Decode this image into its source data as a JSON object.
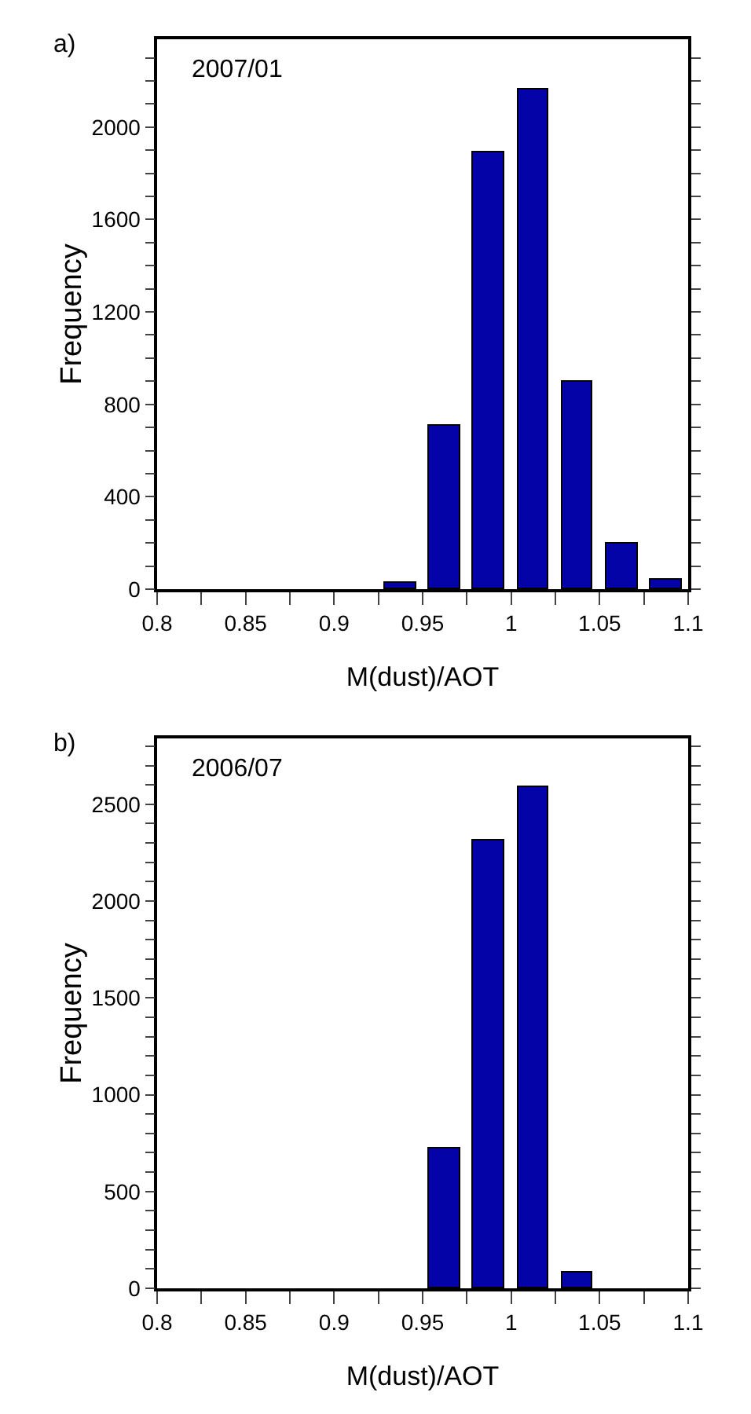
{
  "chart_data": [
    {
      "type": "histogram",
      "xlabel": "M(dust)/AOT",
      "ylabel": "Frequency",
      "annotations": [
        "a)",
        "2007/01"
      ],
      "color": "#0303a8",
      "bins": [
        0.8,
        0.825,
        0.85,
        0.875,
        0.9,
        0.925,
        0.95,
        0.975,
        1,
        1.025,
        1.05,
        1.075,
        1.1
      ],
      "values": [
        0,
        0,
        0,
        0,
        0,
        30,
        710,
        1890,
        2160,
        900,
        200,
        40
      ],
      "xlim": [
        0.8,
        1.1
      ],
      "ylim": [
        0,
        2380
      ],
      "xticks": [
        0.8,
        {
          "value": 0.825,
          "label": null
        },
        0.85,
        {
          "value": 0.875,
          "label": null
        },
        0.9,
        {
          "value": 0.925,
          "label": null
        },
        0.95,
        {
          "value": 0.975,
          "label": null
        },
        1,
        {
          "value": 1.025,
          "label": null
        },
        1.05,
        {
          "value": 1.075,
          "label": null
        },
        1.1
      ],
      "yticks": [
        0,
        {
          "value": 100,
          "label": null
        },
        {
          "value": 200,
          "label": null
        },
        {
          "value": 300,
          "label": null
        },
        400,
        {
          "value": 500,
          "label": null
        },
        {
          "value": 600,
          "label": null
        },
        {
          "value": 700,
          "label": null
        },
        800,
        {
          "value": 900,
          "label": null
        },
        {
          "value": 1000,
          "label": null
        },
        {
          "value": 1100,
          "label": null
        },
        1200,
        {
          "value": 1300,
          "label": null
        },
        {
          "value": 1400,
          "label": null
        },
        {
          "value": 1500,
          "label": null
        },
        1600,
        {
          "value": 1700,
          "label": null
        },
        {
          "value": 1800,
          "label": null
        },
        {
          "value": 1900,
          "label": null
        },
        2000,
        {
          "value": 2100,
          "label": null
        },
        {
          "value": 2200,
          "label": null
        },
        {
          "value": 2300,
          "label": null
        }
      ],
      "grid": false
    },
    {
      "type": "histogram",
      "xlabel": "M(dust)/AOT",
      "ylabel": "Frequency",
      "annotations": [
        "b)",
        "2006/07"
      ],
      "color": "#0303a8",
      "bins": [
        0.8,
        0.825,
        0.85,
        0.875,
        0.9,
        0.925,
        0.95,
        0.975,
        1,
        1.025,
        1.05,
        1.075,
        1.1
      ],
      "values": [
        0,
        0,
        0,
        0,
        0,
        0,
        720,
        2310,
        2590,
        80,
        0,
        0
      ],
      "xlim": [
        0.8,
        1.1
      ],
      "ylim": [
        0,
        2840
      ],
      "xticks": [
        0.8,
        {
          "value": 0.825,
          "label": null
        },
        0.85,
        {
          "value": 0.875,
          "label": null
        },
        0.9,
        {
          "value": 0.925,
          "label": null
        },
        0.95,
        {
          "value": 0.975,
          "label": null
        },
        1,
        {
          "value": 1.025,
          "label": null
        },
        1.05,
        {
          "value": 1.075,
          "label": null
        },
        1.1
      ],
      "yticks": [
        0,
        {
          "value": 100,
          "label": null
        },
        {
          "value": 200,
          "label": null
        },
        {
          "value": 300,
          "label": null
        },
        {
          "value": 400,
          "label": null
        },
        500,
        {
          "value": 600,
          "label": null
        },
        {
          "value": 700,
          "label": null
        },
        {
          "value": 800,
          "label": null
        },
        {
          "value": 900,
          "label": null
        },
        1000,
        {
          "value": 1100,
          "label": null
        },
        {
          "value": 1200,
          "label": null
        },
        {
          "value": 1300,
          "label": null
        },
        {
          "value": 1400,
          "label": null
        },
        1500,
        {
          "value": 1600,
          "label": null
        },
        {
          "value": 1700,
          "label": null
        },
        {
          "value": 1800,
          "label": null
        },
        {
          "value": 1900,
          "label": null
        },
        2000,
        {
          "value": 2100,
          "label": null
        },
        {
          "value": 2200,
          "label": null
        },
        {
          "value": 2300,
          "label": null
        },
        {
          "value": 2400,
          "label": null
        },
        2500,
        {
          "value": 2600,
          "label": null
        },
        {
          "value": 2700,
          "label": null
        },
        {
          "value": 2800,
          "label": null
        }
      ],
      "grid": false
    }
  ]
}
